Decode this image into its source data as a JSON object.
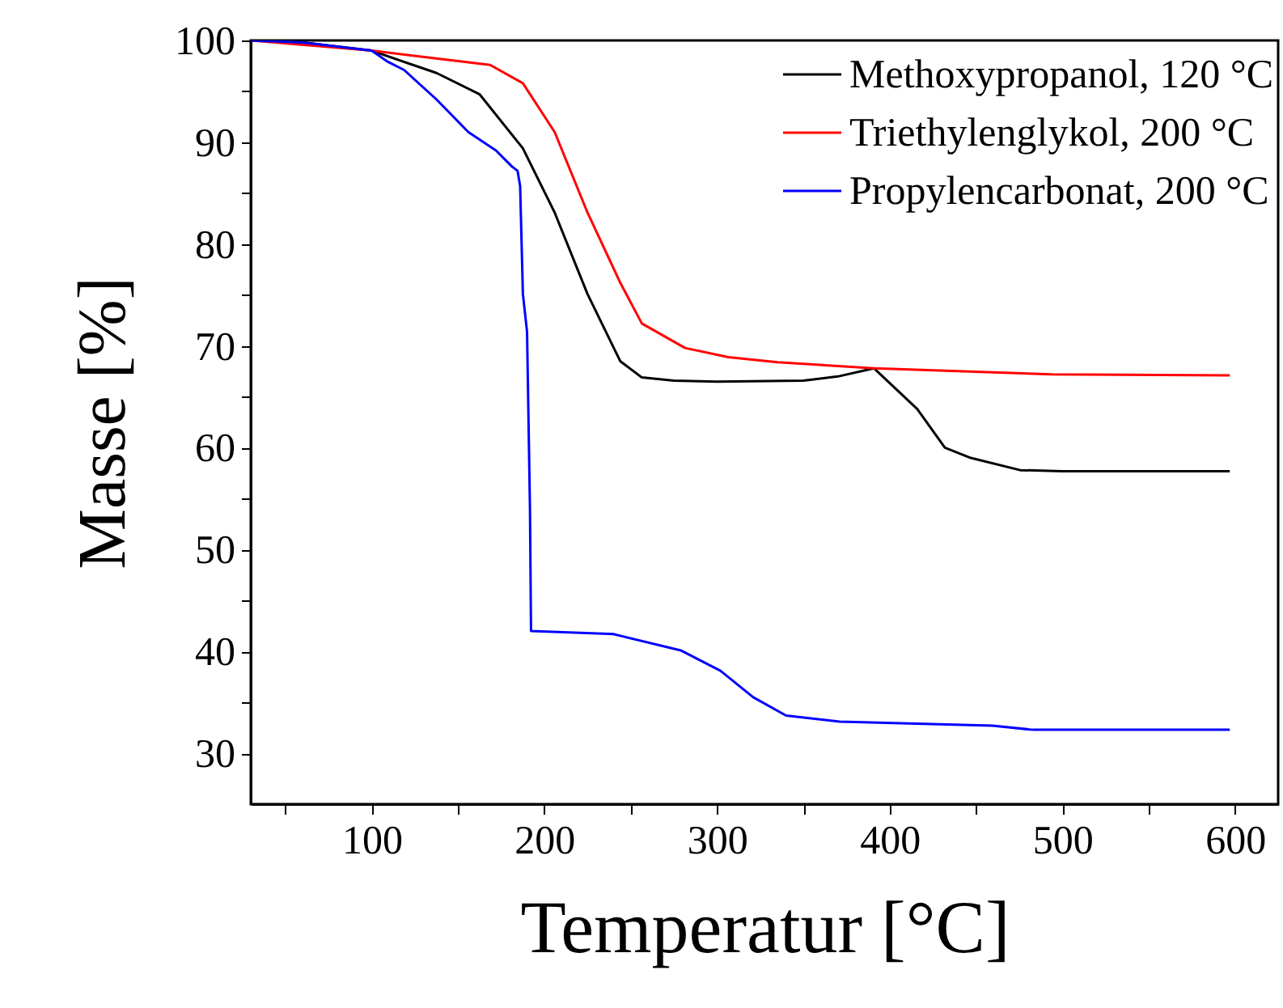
{
  "chart_data": {
    "type": "line",
    "xlabel": "Temperatur [°C]",
    "ylabel": "Masse [%]",
    "xlim": [
      30,
      625
    ],
    "ylim": [
      25,
      100
    ],
    "xticks": [
      {
        "value": 50,
        "label": null
      },
      100,
      {
        "value": 150,
        "label": null
      },
      200,
      {
        "value": 250,
        "label": null
      },
      300,
      {
        "value": 350,
        "label": null
      },
      400,
      {
        "value": 450,
        "label": null
      },
      500,
      {
        "value": 550,
        "label": null
      },
      600
    ],
    "yticks": [
      30,
      {
        "value": 35,
        "label": null
      },
      40,
      {
        "value": 45,
        "label": null
      },
      50,
      {
        "value": 55,
        "label": null
      },
      60,
      {
        "value": 65,
        "label": null
      },
      70,
      {
        "value": 75,
        "label": null
      },
      80,
      {
        "value": 85,
        "label": null
      },
      90,
      {
        "value": 95,
        "label": null
      },
      100
    ],
    "grid": false,
    "legend": "top right",
    "line_style": "solid",
    "marker": "none",
    "series": [
      {
        "name": "Methoxypropanol, 120 °C",
        "color": "#000000",
        "x": [
          30,
          60,
          100,
          137.6,
          162.6,
          187.6,
          206,
          225,
          244,
          256.5,
          275,
          300,
          350,
          370,
          391,
          416,
          432,
          447,
          475.6,
          500,
          550,
          597
        ],
        "values": [
          100,
          99.8,
          99,
          96.8,
          94.7,
          89.4,
          83.1,
          75.1,
          68.5,
          66.9,
          66.6,
          66.5,
          66.6,
          67,
          67.8,
          63.8,
          60,
          59,
          57.8,
          57.7,
          57.7,
          57.7
        ]
      },
      {
        "name": "Triethylenglykol, 200 °C",
        "color": "#ff0000",
        "x": [
          30,
          100,
          168.6,
          187.6,
          206,
          225,
          244,
          256.5,
          281.5,
          306.6,
          335,
          391,
          494,
          597
        ],
        "values": [
          100,
          99,
          97.6,
          95.8,
          91,
          83.1,
          76.2,
          72.2,
          69.8,
          68.9,
          68.4,
          67.8,
          67.2,
          67.1
        ]
      },
      {
        "name": "Propylencarbonat, 200 °C",
        "color": "#0000ff",
        "x": [
          30,
          60,
          100,
          109.4,
          118.8,
          137.6,
          156,
          172,
          181.4,
          184.5,
          186,
          187.6,
          190,
          191.7,
          192.3,
          240,
          279,
          302,
          321,
          340,
          371,
          459.6,
          483,
          597
        ],
        "values": [
          100,
          99.8,
          99,
          97.9,
          97.1,
          94.2,
          91,
          89.2,
          87.6,
          87.2,
          85.7,
          75.1,
          71.4,
          54,
          42,
          41.7,
          40.1,
          38.1,
          35.5,
          33.7,
          33.1,
          32.7,
          32.3,
          32.3
        ]
      }
    ]
  }
}
